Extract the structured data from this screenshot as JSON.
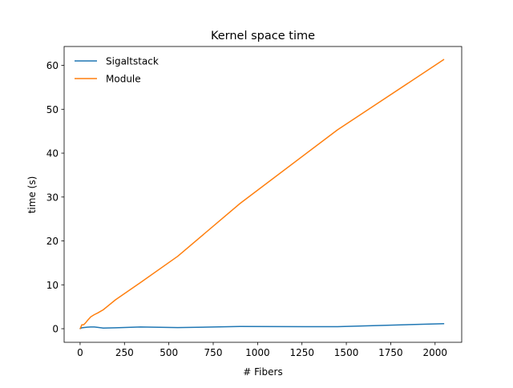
{
  "chart_data": {
    "type": "line",
    "title": "Kernel space time",
    "xlabel": "# Fibers",
    "ylabel": "time (s)",
    "xlim": [
      -90,
      2150
    ],
    "ylim": [
      -3.1,
      64.3
    ],
    "xticks": [
      0,
      250,
      500,
      750,
      1000,
      1250,
      1500,
      1750,
      2000
    ],
    "yticks": [
      0,
      10,
      20,
      30,
      40,
      50,
      60
    ],
    "grid": false,
    "legend_position": "top-left",
    "series": [
      {
        "name": "Sigaltstack",
        "color": "#1f77b4",
        "x": [
          1,
          10,
          20,
          40,
          60,
          80,
          100,
          130,
          200,
          340,
          550,
          900,
          1450,
          2048
        ],
        "y": [
          0.05,
          0.2,
          0.25,
          0.35,
          0.4,
          0.4,
          0.3,
          0.15,
          0.2,
          0.4,
          0.25,
          0.5,
          0.45,
          1.15
        ]
      },
      {
        "name": "Module",
        "color": "#ff7f0e",
        "x": [
          1,
          10,
          20,
          30,
          40,
          60,
          80,
          100,
          130,
          200,
          340,
          550,
          900,
          1450,
          2048
        ],
        "y": [
          0.05,
          0.9,
          0.9,
          1.3,
          1.8,
          2.7,
          3.2,
          3.6,
          4.3,
          6.6,
          10.5,
          16.5,
          28.5,
          45.3,
          61.3
        ]
      }
    ]
  }
}
